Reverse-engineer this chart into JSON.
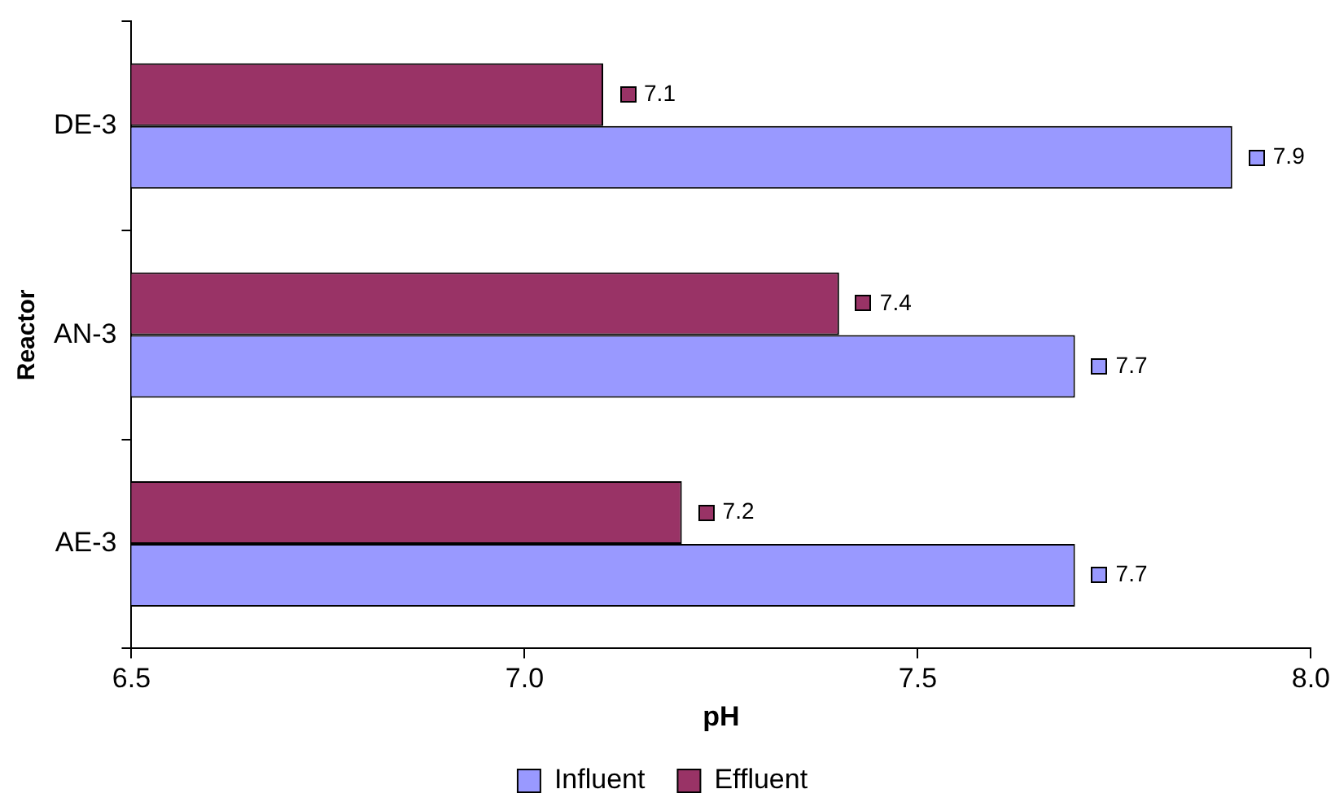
{
  "chart_data": {
    "type": "bar",
    "orientation": "horizontal",
    "xlabel": "pH",
    "ylabel": "Reactor",
    "categories": [
      "DE-3",
      "AN-3",
      "AE-3"
    ],
    "series": [
      {
        "name": "Influent",
        "color": "#9999ff",
        "values": [
          7.9,
          7.7,
          7.7
        ]
      },
      {
        "name": "Effluent",
        "color": "#993366",
        "values": [
          7.1,
          7.4,
          7.2
        ]
      }
    ],
    "xlim": [
      6.5,
      8.0
    ],
    "xticks": [
      6.5,
      {
        "value": 7,
        "label": "7.0"
      },
      7.5,
      {
        "value": 8,
        "label": "8.0"
      }
    ],
    "data_labels": true,
    "legend": "bottom",
    "grid": false
  }
}
